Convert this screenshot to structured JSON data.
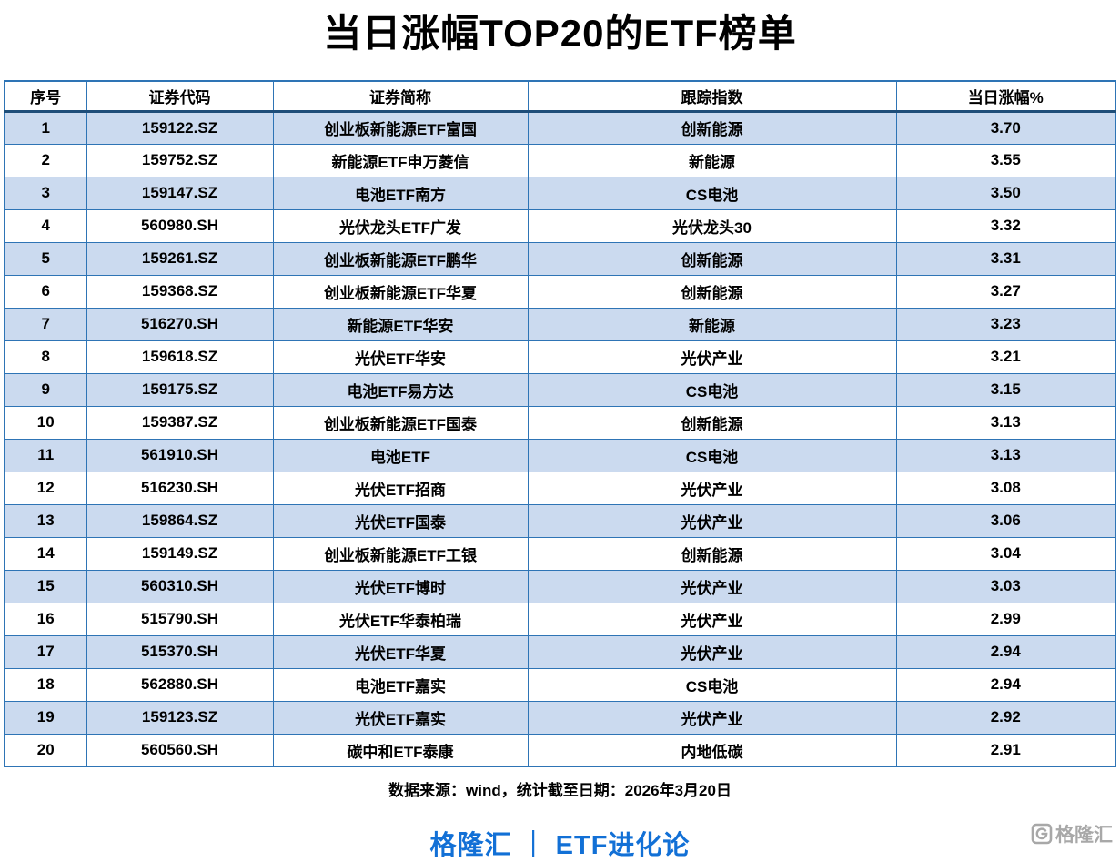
{
  "page": {
    "title": "当日涨幅TOP20的ETF榜单",
    "source_note": "数据来源：wind，统计截至日期：2026年3月20日",
    "branding": "格隆汇 ｜ ETF进化论"
  },
  "watermark": {
    "text": "格隆汇"
  },
  "colors": {
    "row_alt_blue": "#cbdaef",
    "table_border_blue": "#2e74b5",
    "header_divider_blue": "#1f4e79",
    "gain_red": "#ff0000",
    "branding_blue": "#1270d6",
    "watermark_gray": "#a8a8a8"
  },
  "chart_data": {
    "type": "table",
    "title": "当日涨幅TOP20的ETF榜单",
    "columns": [
      "序号",
      "证券代码",
      "证券简称",
      "跟踪指数",
      "当日涨幅%"
    ],
    "rows": [
      [
        "1",
        "159122.SZ",
        "创业板新能源ETF富国",
        "创新能源",
        "3.70"
      ],
      [
        "2",
        "159752.SZ",
        "新能源ETF申万菱信",
        "新能源",
        "3.55"
      ],
      [
        "3",
        "159147.SZ",
        "电池ETF南方",
        "CS电池",
        "3.50"
      ],
      [
        "4",
        "560980.SH",
        "光伏龙头ETF广发",
        "光伏龙头30",
        "3.32"
      ],
      [
        "5",
        "159261.SZ",
        "创业板新能源ETF鹏华",
        "创新能源",
        "3.31"
      ],
      [
        "6",
        "159368.SZ",
        "创业板新能源ETF华夏",
        "创新能源",
        "3.27"
      ],
      [
        "7",
        "516270.SH",
        "新能源ETF华安",
        "新能源",
        "3.23"
      ],
      [
        "8",
        "159618.SZ",
        "光伏ETF华安",
        "光伏产业",
        "3.21"
      ],
      [
        "9",
        "159175.SZ",
        "电池ETF易方达",
        "CS电池",
        "3.15"
      ],
      [
        "10",
        "159387.SZ",
        "创业板新能源ETF国泰",
        "创新能源",
        "3.13"
      ],
      [
        "11",
        "561910.SH",
        "电池ETF",
        "CS电池",
        "3.13"
      ],
      [
        "12",
        "516230.SH",
        "光伏ETF招商",
        "光伏产业",
        "3.08"
      ],
      [
        "13",
        "159864.SZ",
        "光伏ETF国泰",
        "光伏产业",
        "3.06"
      ],
      [
        "14",
        "159149.SZ",
        "创业板新能源ETF工银",
        "创新能源",
        "3.04"
      ],
      [
        "15",
        "560310.SH",
        "光伏ETF博时",
        "光伏产业",
        "3.03"
      ],
      [
        "16",
        "515790.SH",
        "光伏ETF华泰柏瑞",
        "光伏产业",
        "2.99"
      ],
      [
        "17",
        "515370.SH",
        "光伏ETF华夏",
        "光伏产业",
        "2.94"
      ],
      [
        "18",
        "562880.SH",
        "电池ETF嘉实",
        "CS电池",
        "2.94"
      ],
      [
        "19",
        "159123.SZ",
        "光伏ETF嘉实",
        "光伏产业",
        "2.92"
      ],
      [
        "20",
        "560560.SH",
        "碳中和ETF泰康",
        "内地低碳",
        "2.91"
      ]
    ]
  }
}
